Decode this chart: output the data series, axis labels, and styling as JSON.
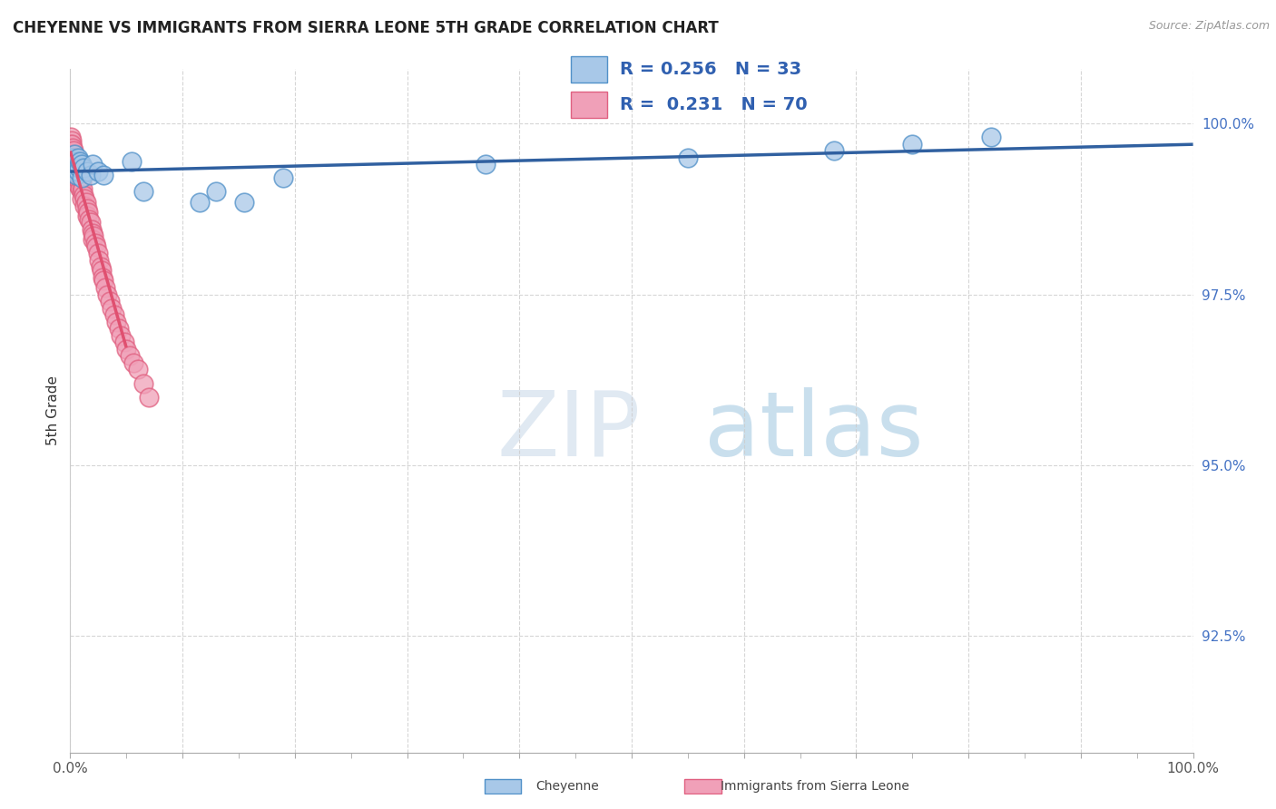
{
  "title": "CHEYENNE VS IMMIGRANTS FROM SIERRA LEONE 5TH GRADE CORRELATION CHART",
  "source": "Source: ZipAtlas.com",
  "ylabel": "5th Grade",
  "legend_label1": "Cheyenne",
  "legend_label2": "Immigrants from Sierra Leone",
  "r1": 0.256,
  "n1": 33,
  "r2": 0.231,
  "n2": 70,
  "color_blue_fill": "#A8C8E8",
  "color_blue_edge": "#5090C8",
  "color_pink_fill": "#F0A0B8",
  "color_pink_edge": "#E06080",
  "color_trend_blue": "#3060A0",
  "color_trend_pink": "#E05070",
  "ytick_values": [
    0.925,
    0.95,
    0.975,
    1.0
  ],
  "ytick_labels": [
    "92.5%",
    "95.0%",
    "97.5%",
    "100.0%"
  ],
  "xlim": [
    0.0,
    1.0
  ],
  "ylim": [
    0.908,
    1.008
  ],
  "watermark_zip": "ZIP",
  "watermark_atlas": "atlas",
  "cheyenne_x": [
    0.001,
    0.001,
    0.002,
    0.003,
    0.003,
    0.004,
    0.004,
    0.005,
    0.005,
    0.006,
    0.007,
    0.007,
    0.008,
    0.009,
    0.01,
    0.01,
    0.012,
    0.015,
    0.018,
    0.02,
    0.025,
    0.03,
    0.055,
    0.065,
    0.115,
    0.13,
    0.155,
    0.19,
    0.37,
    0.55,
    0.68,
    0.75,
    0.82
  ],
  "cheyenne_y": [
    0.995,
    0.994,
    0.9945,
    0.9938,
    0.993,
    0.9955,
    0.9935,
    0.9945,
    0.9925,
    0.994,
    0.995,
    0.993,
    0.9935,
    0.9945,
    0.994,
    0.992,
    0.9935,
    0.993,
    0.9925,
    0.994,
    0.993,
    0.9925,
    0.9945,
    0.99,
    0.9885,
    0.99,
    0.9885,
    0.992,
    0.994,
    0.995,
    0.996,
    0.997,
    0.998
  ],
  "sl_x": [
    0.0005,
    0.0005,
    0.0008,
    0.001,
    0.001,
    0.001,
    0.0015,
    0.0015,
    0.002,
    0.002,
    0.002,
    0.002,
    0.003,
    0.003,
    0.003,
    0.003,
    0.004,
    0.004,
    0.005,
    0.005,
    0.005,
    0.006,
    0.006,
    0.007,
    0.007,
    0.007,
    0.008,
    0.008,
    0.009,
    0.009,
    0.01,
    0.01,
    0.01,
    0.011,
    0.012,
    0.013,
    0.013,
    0.014,
    0.015,
    0.015,
    0.016,
    0.017,
    0.018,
    0.019,
    0.02,
    0.02,
    0.021,
    0.022,
    0.023,
    0.025,
    0.026,
    0.027,
    0.028,
    0.029,
    0.03,
    0.031,
    0.033,
    0.035,
    0.037,
    0.039,
    0.041,
    0.043,
    0.045,
    0.048,
    0.05,
    0.053,
    0.056,
    0.06,
    0.065,
    0.07
  ],
  "sl_y": [
    0.998,
    0.997,
    0.9965,
    0.9975,
    0.996,
    0.995,
    0.997,
    0.9955,
    0.9965,
    0.995,
    0.994,
    0.993,
    0.996,
    0.9945,
    0.9935,
    0.992,
    0.995,
    0.9935,
    0.9945,
    0.993,
    0.992,
    0.994,
    0.9925,
    0.9935,
    0.992,
    0.991,
    0.9925,
    0.9915,
    0.992,
    0.9905,
    0.9915,
    0.99,
    0.989,
    0.9905,
    0.9895,
    0.989,
    0.988,
    0.9885,
    0.9875,
    0.9865,
    0.987,
    0.986,
    0.9855,
    0.9845,
    0.984,
    0.983,
    0.9835,
    0.9825,
    0.982,
    0.981,
    0.98,
    0.979,
    0.9785,
    0.9775,
    0.977,
    0.976,
    0.975,
    0.974,
    0.973,
    0.972,
    0.971,
    0.97,
    0.969,
    0.968,
    0.967,
    0.966,
    0.965,
    0.964,
    0.962,
    0.96
  ]
}
